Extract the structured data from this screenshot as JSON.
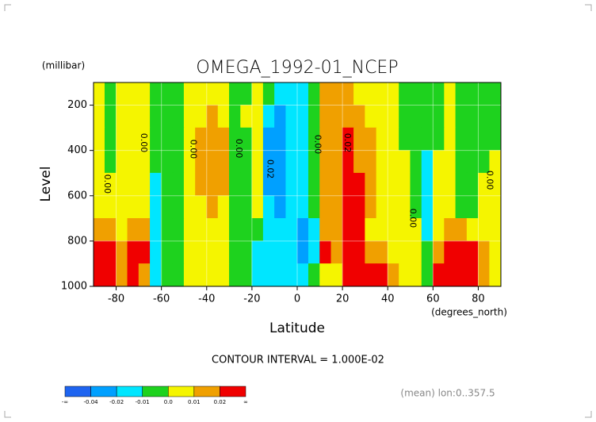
{
  "chart_data": {
    "type": "contour",
    "title": "OMEGA_1992-01_NCEP",
    "y_unit_label": "(millibar)",
    "y_label": "Level",
    "x_label": "Latitude",
    "x_unit_label": "(degrees_north)",
    "x": [
      -87.5,
      -82.5,
      -77.5,
      -72.5,
      -67.5,
      -62.5,
      -57.5,
      -52.5,
      -47.5,
      -42.5,
      -37.5,
      -32.5,
      -27.5,
      -22.5,
      -17.5,
      -12.5,
      -7.5,
      -2.5,
      2.5,
      7.5,
      12.5,
      17.5,
      22.5,
      27.5,
      32.5,
      37.5,
      42.5,
      47.5,
      52.5,
      57.5,
      62.5,
      67.5,
      72.5,
      77.5,
      82.5,
      87.5
    ],
    "y": [
      150,
      250,
      350,
      450,
      550,
      650,
      750,
      850,
      950
    ],
    "values": [
      [
        0.005,
        -0.005,
        0.005,
        0.005,
        0.005,
        -0.005,
        -0.005,
        -0.005,
        0.005,
        0.005,
        0.005,
        0.005,
        -0.005,
        -0.005,
        0.005,
        -0.005,
        -0.015,
        -0.015,
        -0.015,
        -0.005,
        0.015,
        0.015,
        0.015,
        0.005,
        0.005,
        0.005,
        0.005,
        -0.005,
        -0.005,
        -0.005,
        -0.005,
        0.005,
        -0.005,
        -0.005,
        -0.005,
        -0.005
      ],
      [
        0.005,
        -0.005,
        0.005,
        0.005,
        0.005,
        -0.005,
        -0.005,
        -0.005,
        0.005,
        0.005,
        0.015,
        0.005,
        -0.005,
        0.005,
        0.005,
        -0.015,
        -0.025,
        -0.015,
        -0.015,
        -0.005,
        0.015,
        0.015,
        0.015,
        0.015,
        0.005,
        0.005,
        0.005,
        -0.005,
        -0.005,
        -0.005,
        -0.005,
        0.005,
        -0.005,
        -0.005,
        -0.005,
        -0.005
      ],
      [
        0.005,
        -0.005,
        0.005,
        0.005,
        0.005,
        -0.005,
        -0.005,
        -0.005,
        0.005,
        0.015,
        0.015,
        0.015,
        -0.005,
        -0.005,
        0.005,
        -0.025,
        -0.025,
        -0.015,
        -0.015,
        -0.005,
        0.015,
        0.015,
        0.025,
        0.015,
        0.015,
        0.005,
        0.005,
        -0.005,
        -0.005,
        -0.005,
        -0.005,
        0.005,
        -0.005,
        -0.005,
        -0.005,
        -0.005
      ],
      [
        0.005,
        -0.005,
        0.005,
        0.005,
        0.005,
        -0.005,
        -0.005,
        -0.005,
        0.005,
        0.015,
        0.015,
        0.015,
        -0.005,
        -0.005,
        0.005,
        -0.025,
        -0.025,
        -0.015,
        -0.015,
        -0.005,
        0.015,
        0.015,
        0.025,
        0.015,
        0.015,
        0.005,
        0.005,
        0.005,
        -0.005,
        -0.015,
        0.005,
        0.005,
        -0.005,
        -0.005,
        -0.005,
        0.005
      ],
      [
        0.005,
        0.005,
        0.005,
        0.005,
        0.005,
        -0.015,
        -0.005,
        -0.005,
        0.005,
        0.015,
        0.015,
        0.015,
        -0.005,
        -0.005,
        0.005,
        -0.025,
        -0.025,
        -0.015,
        -0.015,
        -0.005,
        0.015,
        0.015,
        0.025,
        0.025,
        0.015,
        0.005,
        0.005,
        0.005,
        -0.005,
        -0.015,
        0.005,
        0.005,
        -0.005,
        -0.005,
        0.005,
        0.005
      ],
      [
        0.005,
        0.005,
        0.005,
        0.005,
        0.005,
        -0.015,
        -0.005,
        -0.005,
        0.005,
        0.005,
        0.015,
        0.005,
        -0.005,
        -0.005,
        0.005,
        -0.015,
        -0.025,
        -0.015,
        -0.015,
        -0.005,
        0.015,
        0.015,
        0.025,
        0.025,
        0.015,
        0.005,
        0.005,
        0.005,
        -0.005,
        -0.015,
        0.005,
        0.005,
        -0.005,
        -0.005,
        0.005,
        0.005
      ],
      [
        0.015,
        0.015,
        0.005,
        0.015,
        0.015,
        -0.015,
        -0.005,
        -0.005,
        0.005,
        0.005,
        0.005,
        0.005,
        -0.005,
        -0.005,
        -0.005,
        -0.015,
        -0.015,
        -0.015,
        -0.025,
        -0.015,
        0.015,
        0.015,
        0.025,
        0.025,
        0.005,
        0.005,
        0.005,
        0.005,
        0.005,
        -0.015,
        0.005,
        0.015,
        0.015,
        0.005,
        0.005,
        0.005
      ],
      [
        0.025,
        0.025,
        0.015,
        0.025,
        0.025,
        -0.015,
        -0.005,
        -0.005,
        0.005,
        0.005,
        0.005,
        0.005,
        -0.005,
        -0.005,
        -0.015,
        -0.015,
        -0.015,
        -0.015,
        -0.025,
        -0.015,
        0.025,
        0.015,
        0.025,
        0.025,
        0.015,
        0.015,
        0.005,
        0.005,
        0.005,
        -0.005,
        0.015,
        0.025,
        0.025,
        0.025,
        0.015,
        0.005
      ],
      [
        0.025,
        0.025,
        0.015,
        0.025,
        0.015,
        -0.015,
        -0.005,
        -0.005,
        0.005,
        0.005,
        0.005,
        0.005,
        -0.005,
        -0.005,
        -0.015,
        -0.015,
        -0.015,
        -0.015,
        -0.015,
        -0.005,
        0.005,
        0.005,
        0.025,
        0.025,
        0.025,
        0.025,
        0.015,
        0.005,
        0.005,
        -0.005,
        0.025,
        0.025,
        0.025,
        0.025,
        0.015,
        0.005
      ]
    ],
    "xlim": [
      -90,
      90
    ],
    "ylim": [
      1000,
      100
    ],
    "xticks": [
      -80,
      -60,
      -40,
      -20,
      0,
      20,
      40,
      60,
      80
    ],
    "yticks": [
      200,
      400,
      600,
      800,
      1000
    ],
    "grid": true,
    "levels": [
      -0.04,
      -0.02,
      -0.01,
      {
        "value": 0,
        "label": "0.0"
      },
      0.01,
      0.02
    ],
    "colors": [
      "#1e64f0",
      "#00a0ff",
      "#00e6ff",
      "#1ed21e",
      "#f5f500",
      "#f0a000",
      "#f00000"
    ],
    "colorbar_ends": [
      "-∞",
      "∞"
    ],
    "annotations": [
      {
        "text": "0.00",
        "x": -84,
        "y": 548
      },
      {
        "text": "0.00",
        "x": -68,
        "y": 366
      },
      {
        "text": "0.00",
        "x": -46,
        "y": 394
      },
      {
        "text": "0.00",
        "x": -26,
        "y": 391
      },
      {
        "text": "0.02",
        "x": -12,
        "y": 482
      },
      {
        "text": "0.00",
        "x": 9,
        "y": 373
      },
      {
        "text": "0.02",
        "x": 22,
        "y": 366
      },
      {
        "text": "0.00",
        "x": 51,
        "y": 699
      },
      {
        "text": "0.00",
        "x": 85,
        "y": 531
      }
    ],
    "contour_interval_text": "CONTOUR INTERVAL = 1.000E-02",
    "footer_note": "(mean) lon:0..357.5"
  }
}
